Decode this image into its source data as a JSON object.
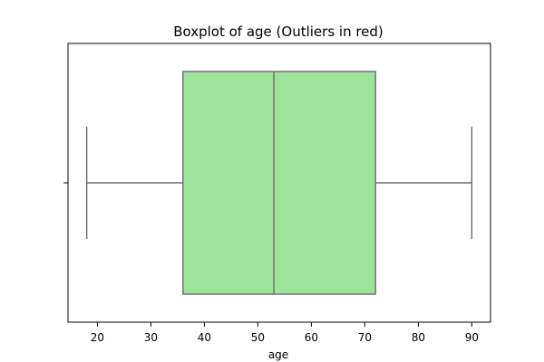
{
  "chart_data": {
    "type": "boxplot",
    "title": "Boxplot of age (Outliers in red)",
    "xlabel": "age",
    "ylabel": "",
    "orientation": "horizontal",
    "xlim": [
      14.5,
      93.5
    ],
    "xticks": [
      20,
      30,
      40,
      50,
      60,
      70,
      80,
      90
    ],
    "box": {
      "whisker_low": 18,
      "q1": 36,
      "median": 53,
      "q3": 72,
      "whisker_high": 90,
      "outliers": []
    },
    "colors": {
      "box_fill": "#9de39b",
      "box_edge": "#6b6b6b",
      "axes": "#000000"
    },
    "grid": false,
    "legend": "none"
  }
}
